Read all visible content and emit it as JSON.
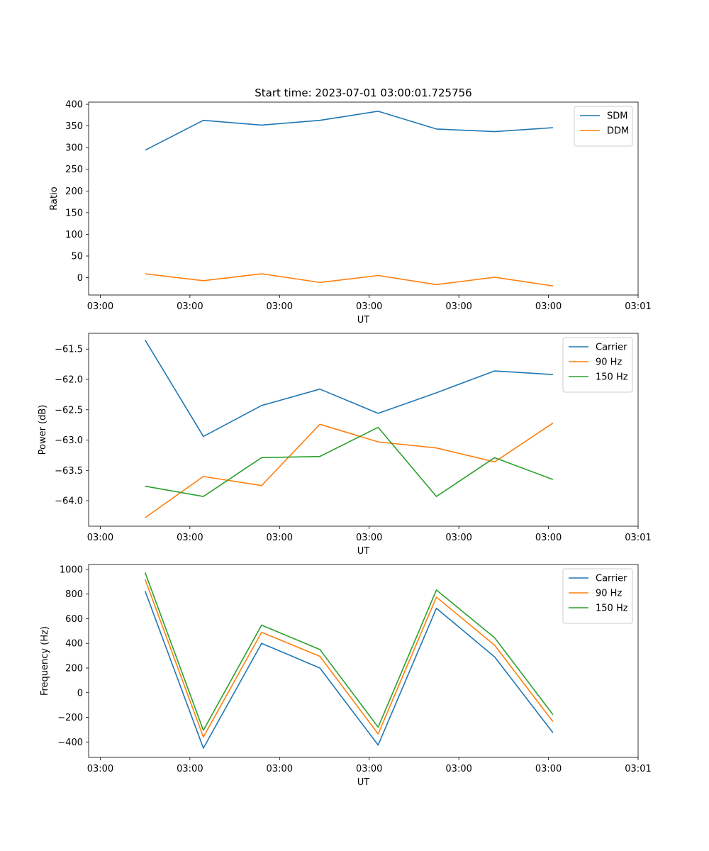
{
  "figure_title": "Start time: 2023-07-01 03:00:01.725756",
  "colors": {
    "blue": "#1f77b4",
    "orange": "#ff7f0e",
    "green": "#2ca02c"
  },
  "chart_data": [
    {
      "type": "line",
      "xlabel": "UT",
      "ylabel": "Ratio",
      "x_tick_labels": [
        "03:00",
        "03:00",
        "03:00",
        "03:00",
        "03:00",
        "03:00",
        "03:01"
      ],
      "x": [
        0.5,
        1.15,
        1.8,
        2.45,
        3.1,
        3.75,
        4.4,
        5.05
      ],
      "xlim": [
        -0.13,
        6.0
      ],
      "ylim": [
        -40,
        405
      ],
      "y_ticks": [
        0,
        50,
        100,
        150,
        200,
        250,
        300,
        350,
        400
      ],
      "legend_position": "top-right",
      "series": [
        {
          "name": "SDM",
          "color": "#1f77b4",
          "values": [
            294,
            363,
            352,
            363,
            384,
            343,
            337,
            346
          ]
        },
        {
          "name": "DDM",
          "color": "#ff7f0e",
          "values": [
            9,
            -7,
            9,
            -11,
            5,
            -16,
            1,
            -19
          ]
        }
      ]
    },
    {
      "type": "line",
      "xlabel": "UT",
      "ylabel": "Power (dB)",
      "x_tick_labels": [
        "03:00",
        "03:00",
        "03:00",
        "03:00",
        "03:00",
        "03:00",
        "03:01"
      ],
      "x": [
        0.5,
        1.15,
        1.8,
        2.45,
        3.1,
        3.75,
        4.4,
        5.05
      ],
      "xlim": [
        -0.13,
        6.0
      ],
      "ylim": [
        -64.42,
        -61.24
      ],
      "y_ticks": [
        -64.0,
        -63.5,
        -63.0,
        -62.5,
        -62.0,
        -61.5
      ],
      "y_tick_labels": [
        "−64.0",
        "−63.5",
        "−63.0",
        "−62.5",
        "−62.0",
        "−61.5"
      ],
      "legend_position": "top-right",
      "series": [
        {
          "name": "Carrier",
          "color": "#1f77b4",
          "values": [
            -61.35,
            -62.94,
            -62.43,
            -62.16,
            -62.56,
            -62.22,
            -61.86,
            -61.92
          ]
        },
        {
          "name": "90 Hz",
          "color": "#ff7f0e",
          "values": [
            -64.28,
            -63.6,
            -63.75,
            -62.74,
            -63.03,
            -63.13,
            -63.36,
            -62.72
          ]
        },
        {
          "name": "150 Hz",
          "color": "#2ca02c",
          "values": [
            -63.76,
            -63.93,
            -63.29,
            -63.27,
            -62.79,
            -63.93,
            -63.29,
            -63.65
          ]
        }
      ]
    },
    {
      "type": "line",
      "xlabel": "UT",
      "ylabel": "Frequency (Hz)",
      "x_tick_labels": [
        "03:00",
        "03:00",
        "03:00",
        "03:00",
        "03:00",
        "03:00",
        "03:01"
      ],
      "x": [
        0.5,
        1.15,
        1.8,
        2.45,
        3.1,
        3.75,
        4.4,
        5.05
      ],
      "xlim": [
        -0.13,
        6.0
      ],
      "ylim": [
        -525,
        1040
      ],
      "y_ticks": [
        -400,
        -200,
        0,
        200,
        400,
        600,
        800,
        1000
      ],
      "y_tick_labels": [
        "−400",
        "−200",
        "0",
        "200",
        "400",
        "600",
        "800",
        "1000"
      ],
      "legend_position": "top-right",
      "series": [
        {
          "name": "Carrier",
          "color": "#1f77b4",
          "values": [
            825,
            -450,
            400,
            200,
            -425,
            685,
            290,
            -325
          ]
        },
        {
          "name": "90 Hz",
          "color": "#ff7f0e",
          "values": [
            920,
            -360,
            490,
            295,
            -335,
            775,
            385,
            -235
          ]
        },
        {
          "name": "150 Hz",
          "color": "#2ca02c",
          "values": [
            975,
            -305,
            548,
            350,
            -280,
            833,
            445,
            -178
          ]
        }
      ]
    }
  ]
}
